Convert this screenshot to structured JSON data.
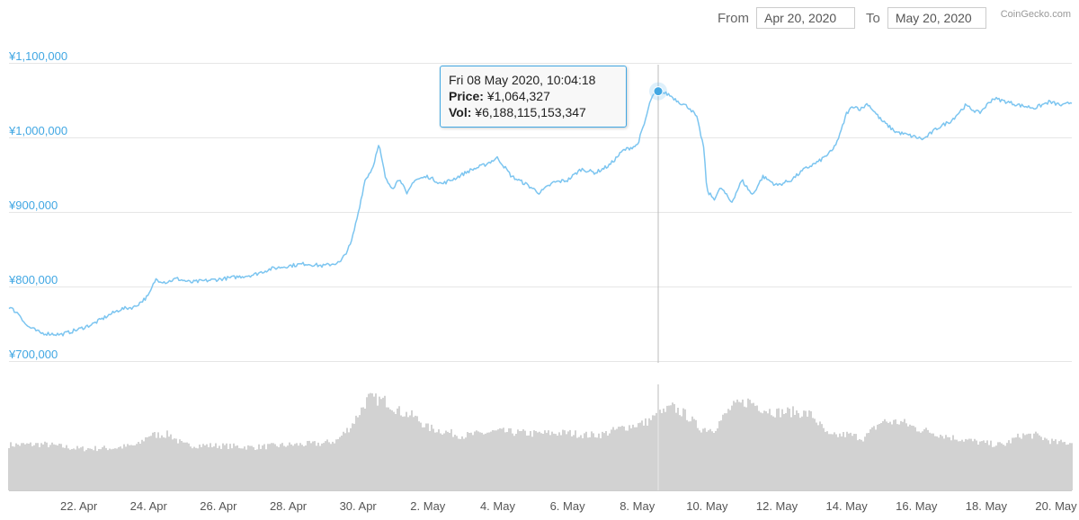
{
  "header": {
    "from_label": "From",
    "from_value": "Apr 20, 2020",
    "to_label": "To",
    "to_value": "May 20, 2020",
    "credits": "CoinGecko.com"
  },
  "tooltip": {
    "date": "Fri 08 May 2020, 10:04:18",
    "price_label": "Price:",
    "price_value": "¥1,064,327",
    "vol_label": "Vol:",
    "vol_value": "¥6,188,115,153,347"
  },
  "colors": {
    "line": "#7cc5f0",
    "accent": "#41a7e3",
    "volume": "#a6a6a6",
    "grid": "#e6e6e6"
  },
  "chart_data": [
    {
      "type": "line",
      "name": "price",
      "ylim": [
        700000,
        1100000
      ],
      "y_tick_values": [
        700000,
        800000,
        900000,
        1000000,
        1100000
      ],
      "y_tick_labels": [
        "¥700,000",
        "¥800,000",
        "¥900,000",
        "¥1,000,000",
        "¥1,100,000"
      ],
      "x_tick_values": [
        2,
        4,
        6,
        8,
        10,
        12,
        14,
        16,
        18,
        20,
        22,
        24,
        26,
        28,
        30
      ],
      "x_tick_labels": [
        "22. Apr",
        "24. Apr",
        "26. Apr",
        "28. Apr",
        "30. Apr",
        "2. May",
        "4. May",
        "6. May",
        "8. May",
        "10. May",
        "12. May",
        "14. May",
        "16. May",
        "18. May",
        "20. May"
      ],
      "xlim": [
        0,
        30.45
      ],
      "x_unit": "days since Apr 20, 2020",
      "grid": true,
      "x": [
        0,
        0.3,
        0.5,
        0.9,
        1.5,
        2.0,
        2.4,
        2.9,
        3.2,
        3.6,
        4.0,
        4.2,
        4.5,
        4.8,
        5.2,
        5.6,
        6.0,
        6.5,
        7.0,
        7.5,
        8.0,
        8.5,
        9.0,
        9.5,
        9.8,
        10.0,
        10.2,
        10.4,
        10.6,
        10.8,
        11.0,
        11.2,
        11.4,
        11.6,
        12.0,
        12.4,
        12.8,
        13.2,
        13.6,
        14.0,
        14.4,
        14.8,
        15.2,
        15.6,
        16.0,
        16.4,
        16.8,
        17.2,
        17.6,
        18.0,
        18.2,
        18.4,
        18.6,
        18.9,
        19.2,
        19.5,
        19.7,
        19.9,
        20.0,
        20.2,
        20.4,
        20.7,
        21.0,
        21.3,
        21.6,
        22.0,
        22.4,
        22.8,
        23.2,
        23.6,
        23.8,
        24.0,
        24.2,
        24.4,
        24.6,
        25.0,
        25.4,
        25.8,
        26.2,
        26.6,
        27.0,
        27.4,
        27.8,
        28.2,
        28.6,
        29.0,
        29.4,
        29.8,
        30.2,
        30.45
      ],
      "values": [
        775000,
        765000,
        750000,
        740000,
        738000,
        745000,
        752000,
        765000,
        772000,
        775000,
        790000,
        812000,
        808000,
        813000,
        808000,
        810000,
        812000,
        815000,
        818000,
        826000,
        830000,
        833000,
        830000,
        835000,
        860000,
        900000,
        945000,
        960000,
        992000,
        945000,
        935000,
        948000,
        925000,
        945000,
        950000,
        940000,
        948000,
        958000,
        965000,
        975000,
        950000,
        940000,
        928000,
        942000,
        945000,
        960000,
        955000,
        965000,
        985000,
        992000,
        1020000,
        1055000,
        1064327,
        1060000,
        1050000,
        1042000,
        1030000,
        990000,
        930000,
        920000,
        935000,
        915000,
        945000,
        925000,
        950000,
        938000,
        945000,
        960000,
        970000,
        985000,
        1005000,
        1035000,
        1045000,
        1040000,
        1048000,
        1025000,
        1010000,
        1005000,
        1000000,
        1015000,
        1025000,
        1045000,
        1035000,
        1055000,
        1050000,
        1045000,
        1042000,
        1050000,
        1045000,
        1050000
      ]
    },
    {
      "type": "bar",
      "name": "volume",
      "ylim": [
        0,
        14
      ],
      "x": [
        0,
        1,
        2,
        3,
        3.7,
        4.0,
        4.6,
        5.0,
        6,
        7,
        8,
        9,
        9.4,
        9.8,
        10.3,
        10.8,
        11.2,
        11.6,
        12,
        13,
        14,
        15,
        16,
        16.6,
        17,
        17.6,
        18.2,
        18.7,
        19.0,
        19.4,
        19.8,
        20.2,
        20.7,
        21.2,
        21.6,
        22,
        22.5,
        23,
        23.5,
        24,
        24.5,
        25,
        25.6,
        26,
        27,
        28,
        28.5,
        29,
        29.4,
        30,
        30.45
      ],
      "values": [
        6.0,
        6.1,
        5.5,
        5.6,
        6.0,
        7.3,
        7.4,
        6.0,
        5.9,
        5.7,
        6.0,
        6.2,
        6.6,
        8.5,
        12.2,
        11.8,
        10.4,
        9.8,
        8.3,
        7.2,
        7.8,
        7.5,
        7.6,
        7.3,
        7.4,
        8.3,
        8.9,
        10.2,
        11.0,
        10.0,
        8.2,
        8.1,
        11.0,
        11.8,
        10.8,
        10.3,
        10.4,
        10.0,
        7.1,
        7.4,
        6.9,
        9.1,
        9.0,
        8.2,
        7.0,
        6.2,
        6.0,
        7.3,
        7.3,
        6.3,
        6.3
      ]
    }
  ]
}
